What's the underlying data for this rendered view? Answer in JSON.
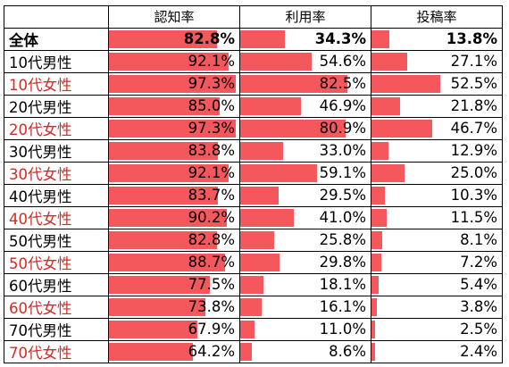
{
  "chart_data": {
    "type": "table",
    "columns": [
      "認知率",
      "利用率",
      "投稿率"
    ],
    "max_value": 100,
    "colors": {
      "bar": "#f4585c",
      "female_label": "#d32a26"
    },
    "rows": [
      {
        "label": "全体",
        "total": true,
        "values": [
          82.8,
          34.3,
          13.8
        ],
        "display": [
          "82.8%",
          "34.3%",
          "13.8%"
        ]
      },
      {
        "label": "10代男性",
        "female": false,
        "values": [
          92.1,
          54.6,
          27.1
        ],
        "display": [
          "92.1%",
          "54.6%",
          "27.1%"
        ]
      },
      {
        "label": "10代女性",
        "female": true,
        "values": [
          97.3,
          82.5,
          52.5
        ],
        "display": [
          "97.3%",
          "82.5%",
          "52.5%"
        ]
      },
      {
        "label": "20代男性",
        "female": false,
        "values": [
          85.0,
          46.9,
          21.8
        ],
        "display": [
          "85.0%",
          "46.9%",
          "21.8%"
        ]
      },
      {
        "label": "20代女性",
        "female": true,
        "values": [
          97.3,
          80.9,
          46.7
        ],
        "display": [
          "97.3%",
          "80.9%",
          "46.7%"
        ]
      },
      {
        "label": "30代男性",
        "female": false,
        "values": [
          83.8,
          33.0,
          12.9
        ],
        "display": [
          "83.8%",
          "33.0%",
          "12.9%"
        ]
      },
      {
        "label": "30代女性",
        "female": true,
        "values": [
          92.1,
          59.1,
          25.0
        ],
        "display": [
          "92.1%",
          "59.1%",
          "25.0%"
        ]
      },
      {
        "label": "40代男性",
        "female": false,
        "values": [
          83.7,
          29.5,
          10.3
        ],
        "display": [
          "83.7%",
          "29.5%",
          "10.3%"
        ]
      },
      {
        "label": "40代女性",
        "female": true,
        "values": [
          90.2,
          41.0,
          11.5
        ],
        "display": [
          "90.2%",
          "41.0%",
          "11.5%"
        ]
      },
      {
        "label": "50代男性",
        "female": false,
        "values": [
          82.8,
          25.8,
          8.1
        ],
        "display": [
          "82.8%",
          "25.8%",
          "8.1%"
        ]
      },
      {
        "label": "50代女性",
        "female": true,
        "values": [
          88.7,
          29.8,
          7.2
        ],
        "display": [
          "88.7%",
          "29.8%",
          "7.2%"
        ]
      },
      {
        "label": "60代男性",
        "female": false,
        "values": [
          77.5,
          18.1,
          5.4
        ],
        "display": [
          "77.5%",
          "18.1%",
          "5.4%"
        ]
      },
      {
        "label": "60代女性",
        "female": true,
        "values": [
          73.8,
          16.1,
          3.8
        ],
        "display": [
          "73.8%",
          "16.1%",
          "3.8%"
        ]
      },
      {
        "label": "70代男性",
        "female": false,
        "values": [
          67.9,
          11.0,
          2.5
        ],
        "display": [
          "67.9%",
          "11.0%",
          "2.5%"
        ]
      },
      {
        "label": "70代女性",
        "female": true,
        "values": [
          64.2,
          8.6,
          2.4
        ],
        "display": [
          "64.2%",
          "8.6%",
          "2.4%"
        ]
      }
    ]
  }
}
